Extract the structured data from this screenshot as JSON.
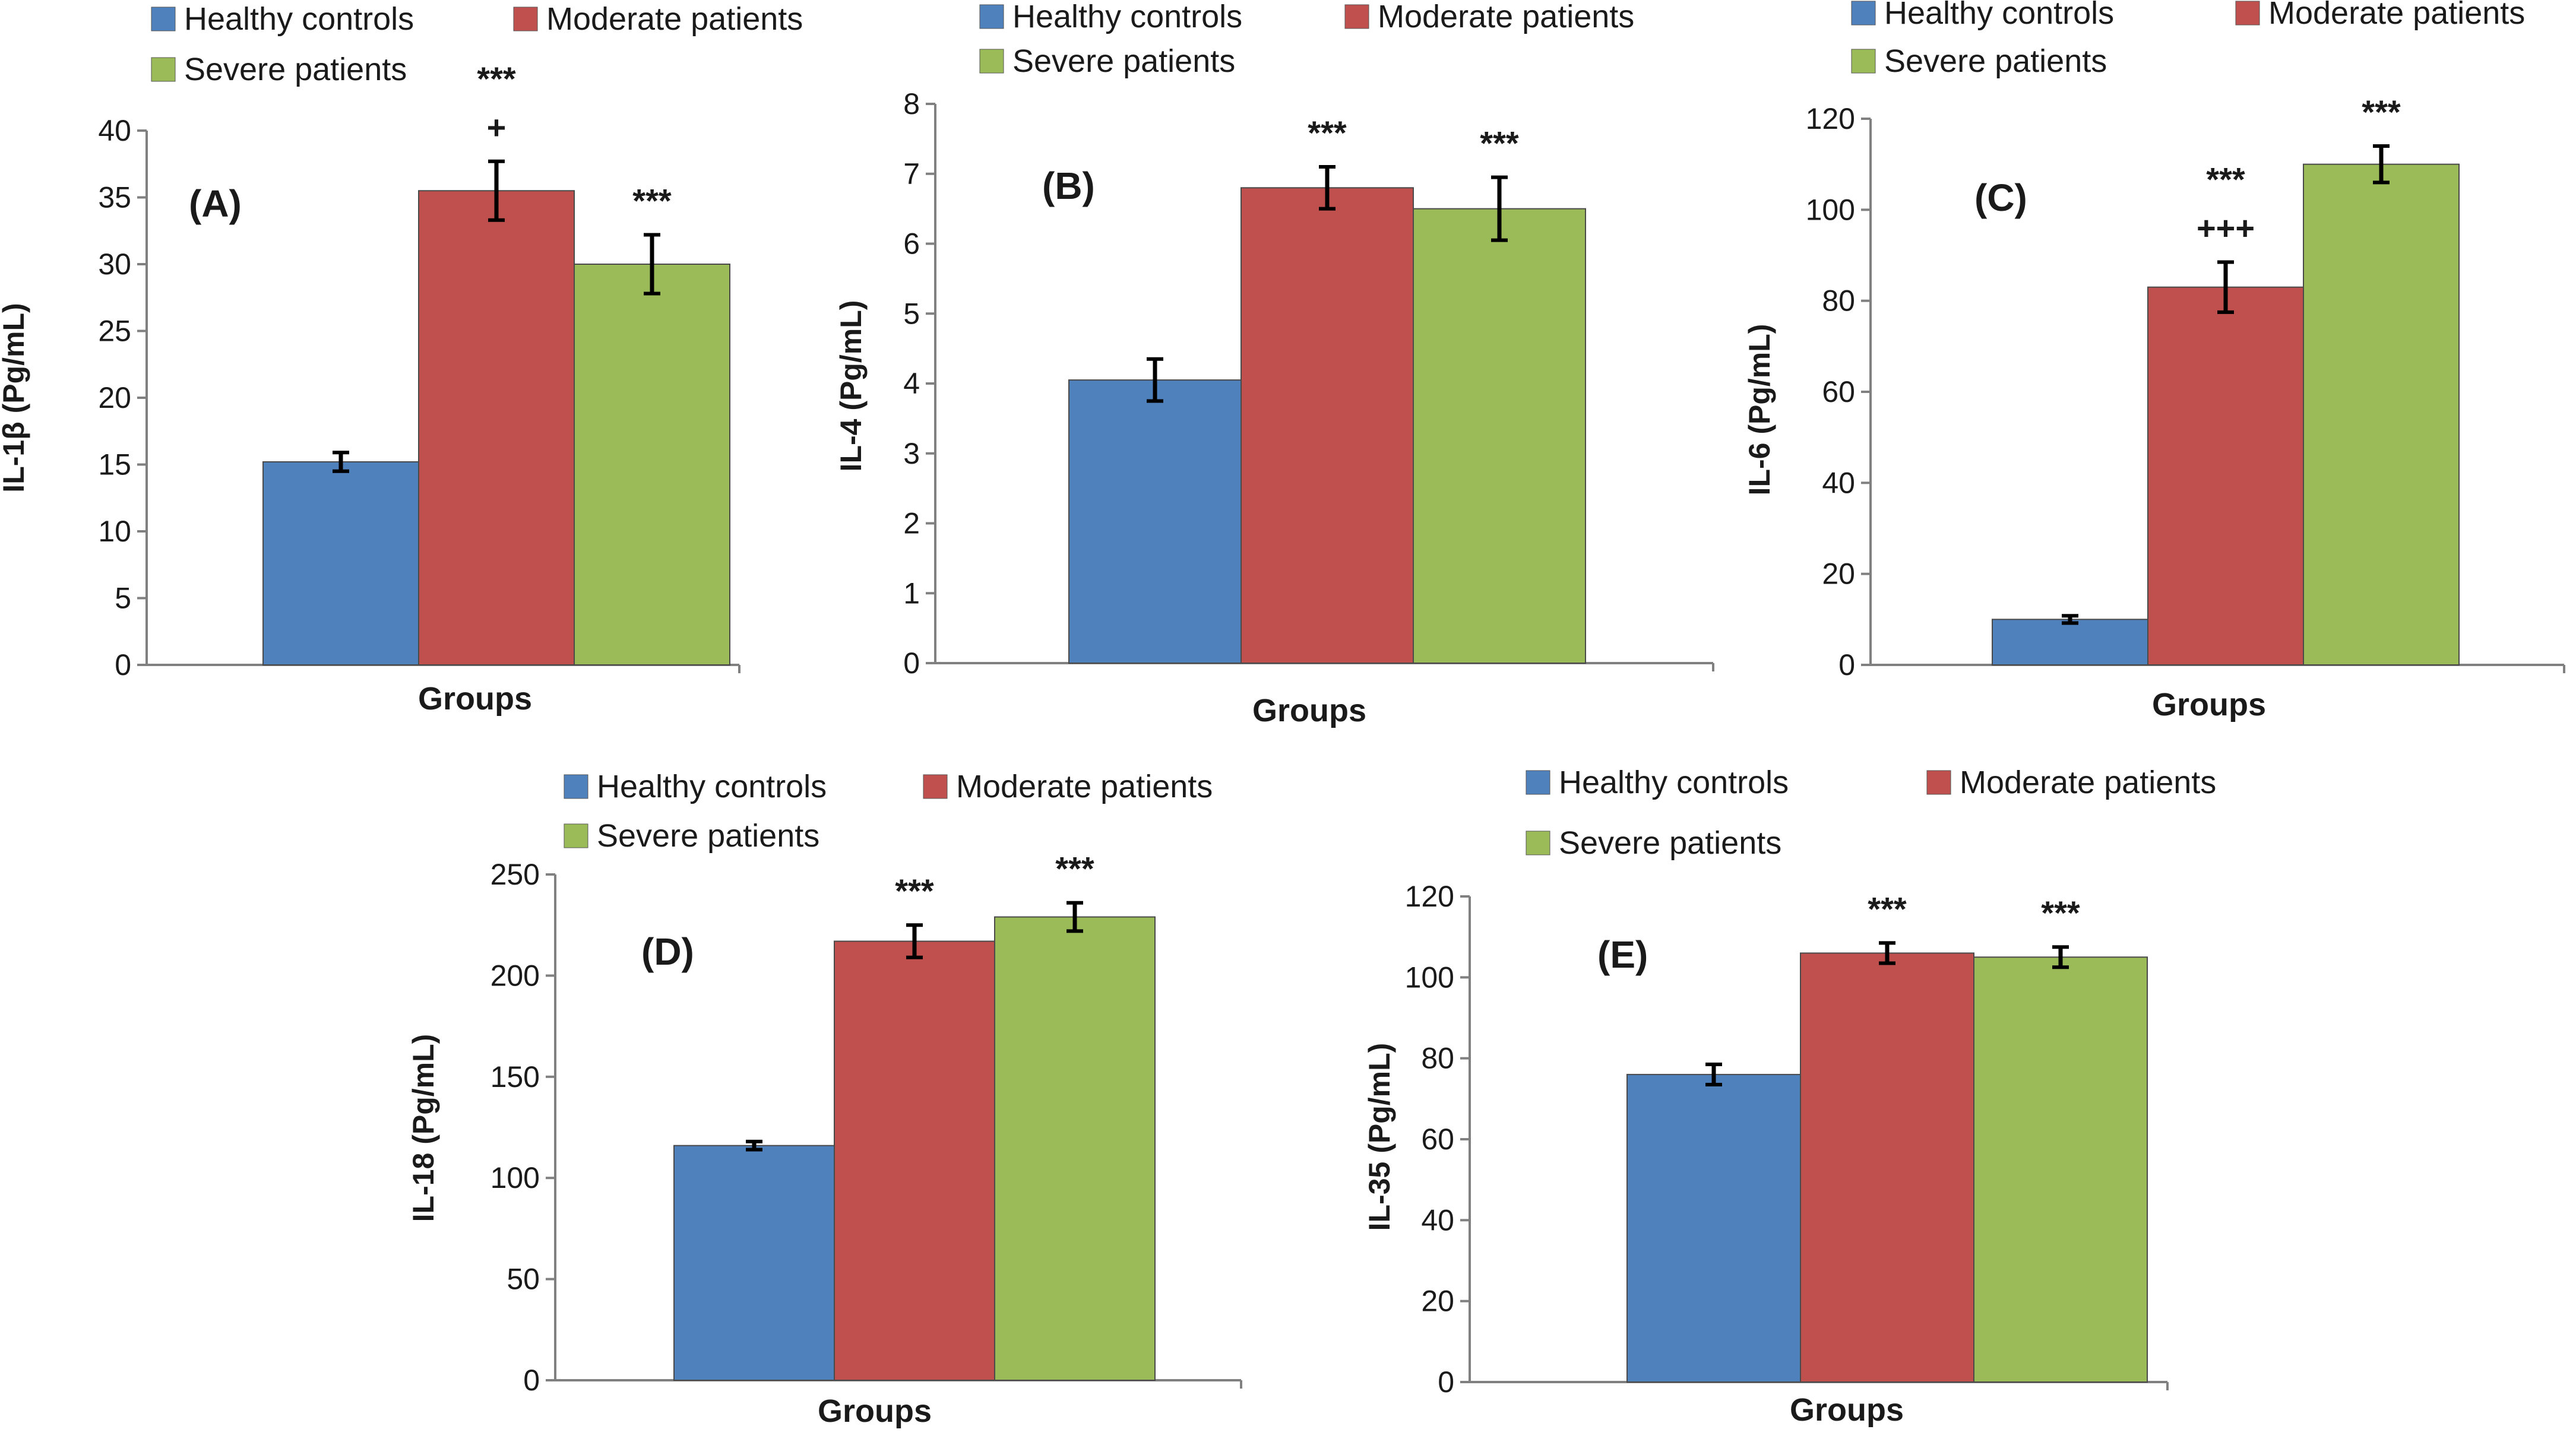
{
  "colors": {
    "healthy": "#4F81BD",
    "moderate": "#C0504D",
    "severe": "#9BBB59",
    "axis": "#808080",
    "text": "#1a1a1a"
  },
  "legend_labels": [
    "Healthy controls",
    "Moderate patients",
    "Severe patients"
  ],
  "chart_data": [
    {
      "type": "bar",
      "panel": "(A)",
      "ylabel": "IL-1β (Pg/mL)",
      "xlabel": "Groups",
      "ylim": [
        0,
        40
      ],
      "yticks": [
        0,
        5,
        10,
        15,
        20,
        25,
        30,
        35,
        40
      ],
      "categories": [
        "Healthy controls",
        "Moderate patients",
        "Severe patients"
      ],
      "values": [
        15.2,
        35.5,
        30
      ],
      "errors": [
        0.7,
        2.2,
        2.2
      ],
      "annotations": [
        [],
        [
          "***",
          "+"
        ],
        [
          "***"
        ]
      ]
    },
    {
      "type": "bar",
      "panel": "(B)",
      "ylabel": "IL-4 (Pg/mL)",
      "xlabel": "Groups",
      "ylim": [
        0,
        8
      ],
      "yticks": [
        0,
        1,
        2,
        3,
        4,
        5,
        6,
        7,
        8
      ],
      "categories": [
        "Healthy controls",
        "Moderate patients",
        "Severe patients"
      ],
      "values": [
        4.05,
        6.8,
        6.5
      ],
      "errors": [
        0.3,
        0.3,
        0.45
      ],
      "annotations": [
        [],
        [
          "***"
        ],
        [
          "***"
        ]
      ]
    },
    {
      "type": "bar",
      "panel": "(C)",
      "ylabel": "IL-6 (Pg/mL)",
      "xlabel": "Groups",
      "ylim": [
        0,
        120
      ],
      "yticks": [
        0,
        20,
        40,
        60,
        80,
        100,
        120
      ],
      "categories": [
        "Healthy controls",
        "Moderate patients",
        "Severe patients"
      ],
      "values": [
        10,
        83,
        110
      ],
      "errors": [
        0.8,
        5.5,
        4
      ],
      "annotations": [
        [],
        [
          "***",
          "+++"
        ],
        [
          "***"
        ]
      ]
    },
    {
      "type": "bar",
      "panel": "(D)",
      "ylabel": "IL-18 (Pg/mL)",
      "xlabel": "Groups",
      "ylim": [
        0,
        250
      ],
      "yticks": [
        0,
        50,
        100,
        150,
        200,
        250
      ],
      "categories": [
        "Healthy controls",
        "Moderate patients",
        "Severe patients"
      ],
      "values": [
        116,
        217,
        229
      ],
      "errors": [
        2,
        8,
        7
      ],
      "annotations": [
        [],
        [
          "***"
        ],
        [
          "***"
        ]
      ]
    },
    {
      "type": "bar",
      "panel": "(E)",
      "ylabel": "IL-35 (Pg/mL)",
      "xlabel": "Groups",
      "ylim": [
        0,
        120
      ],
      "yticks": [
        0,
        20,
        40,
        60,
        80,
        100,
        120
      ],
      "categories": [
        "Healthy controls",
        "Moderate patients",
        "Severe patients"
      ],
      "values": [
        76,
        106,
        105
      ],
      "errors": [
        2.5,
        2.5,
        2.5
      ],
      "annotations": [
        [],
        [
          "***"
        ],
        [
          "***"
        ]
      ]
    }
  ]
}
